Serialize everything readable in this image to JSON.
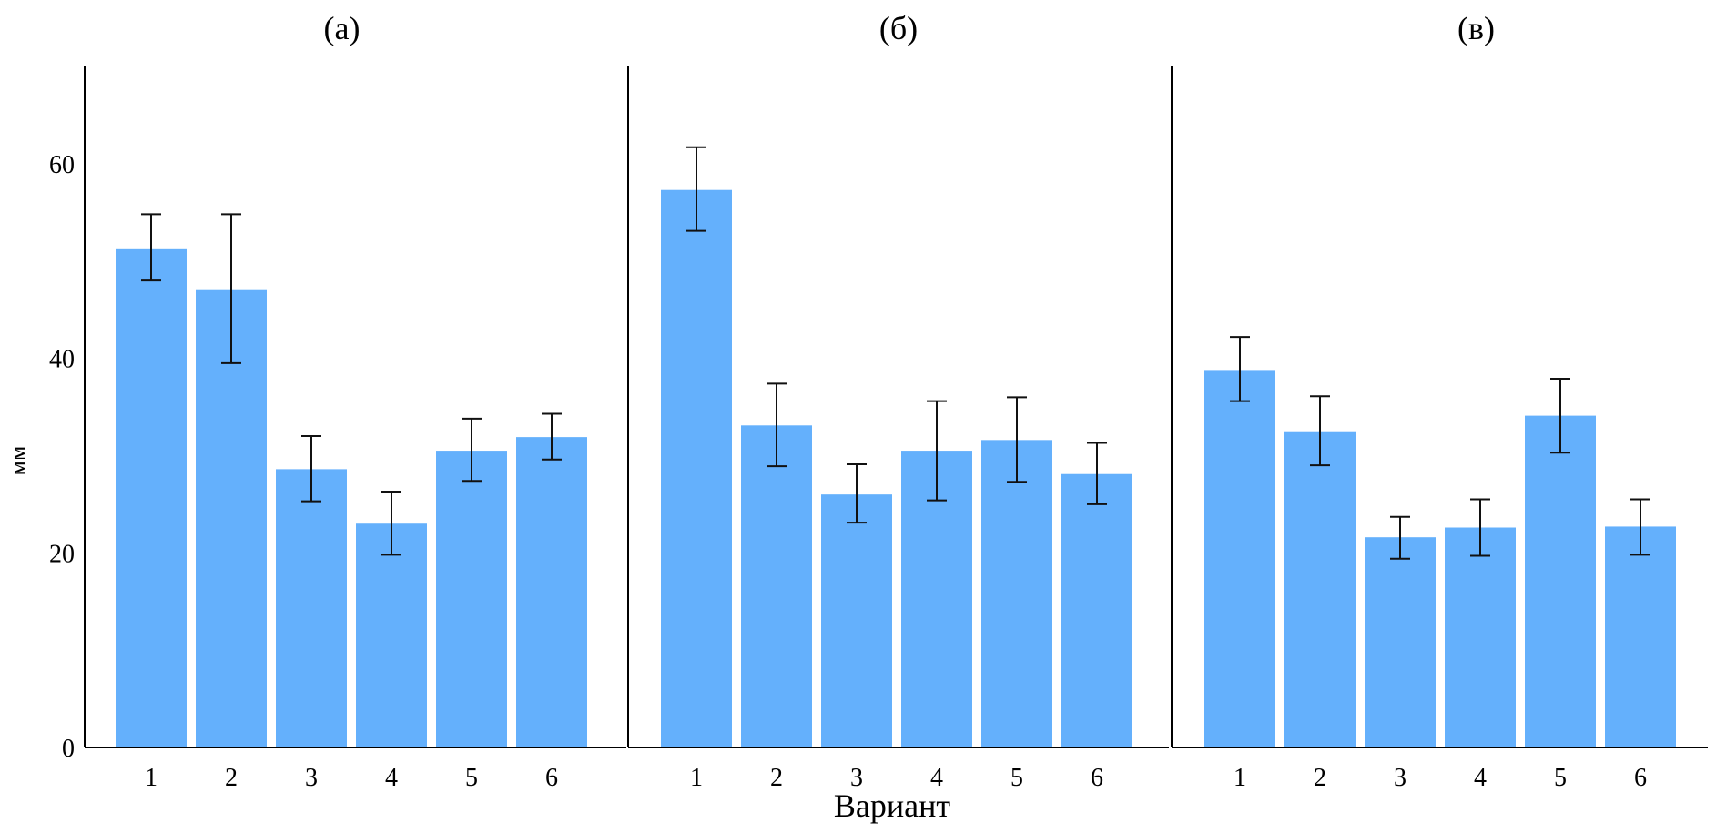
{
  "chart_data": {
    "type": "bar",
    "ylabel": "мм",
    "xlabel": "Вариант",
    "ylim": [
      0,
      70
    ],
    "yticks": [
      0,
      20,
      40,
      60
    ],
    "categories": [
      "1",
      "2",
      "3",
      "4",
      "5",
      "6"
    ],
    "bar_color": "#64b0fc",
    "panels": [
      {
        "title": "(а)",
        "values": [
          51.3,
          47.1,
          28.6,
          23.0,
          30.5,
          31.9
        ],
        "err_low": [
          48.0,
          39.5,
          25.3,
          19.8,
          27.4,
          29.6
        ],
        "err_high": [
          54.8,
          54.8,
          32.0,
          26.3,
          33.8,
          34.3
        ]
      },
      {
        "title": "(б)",
        "values": [
          57.3,
          33.1,
          26.0,
          30.5,
          31.6,
          28.1
        ],
        "err_low": [
          53.1,
          28.9,
          23.1,
          25.4,
          27.3,
          25.0
        ],
        "err_high": [
          61.7,
          37.4,
          29.1,
          35.6,
          36.0,
          31.3
        ]
      },
      {
        "title": "(в)",
        "values": [
          38.8,
          32.5,
          21.6,
          22.6,
          34.1,
          22.7
        ],
        "err_low": [
          35.6,
          29.0,
          19.4,
          19.7,
          30.3,
          19.8
        ],
        "err_high": [
          42.2,
          36.1,
          23.7,
          25.5,
          37.9,
          25.5
        ]
      }
    ]
  }
}
